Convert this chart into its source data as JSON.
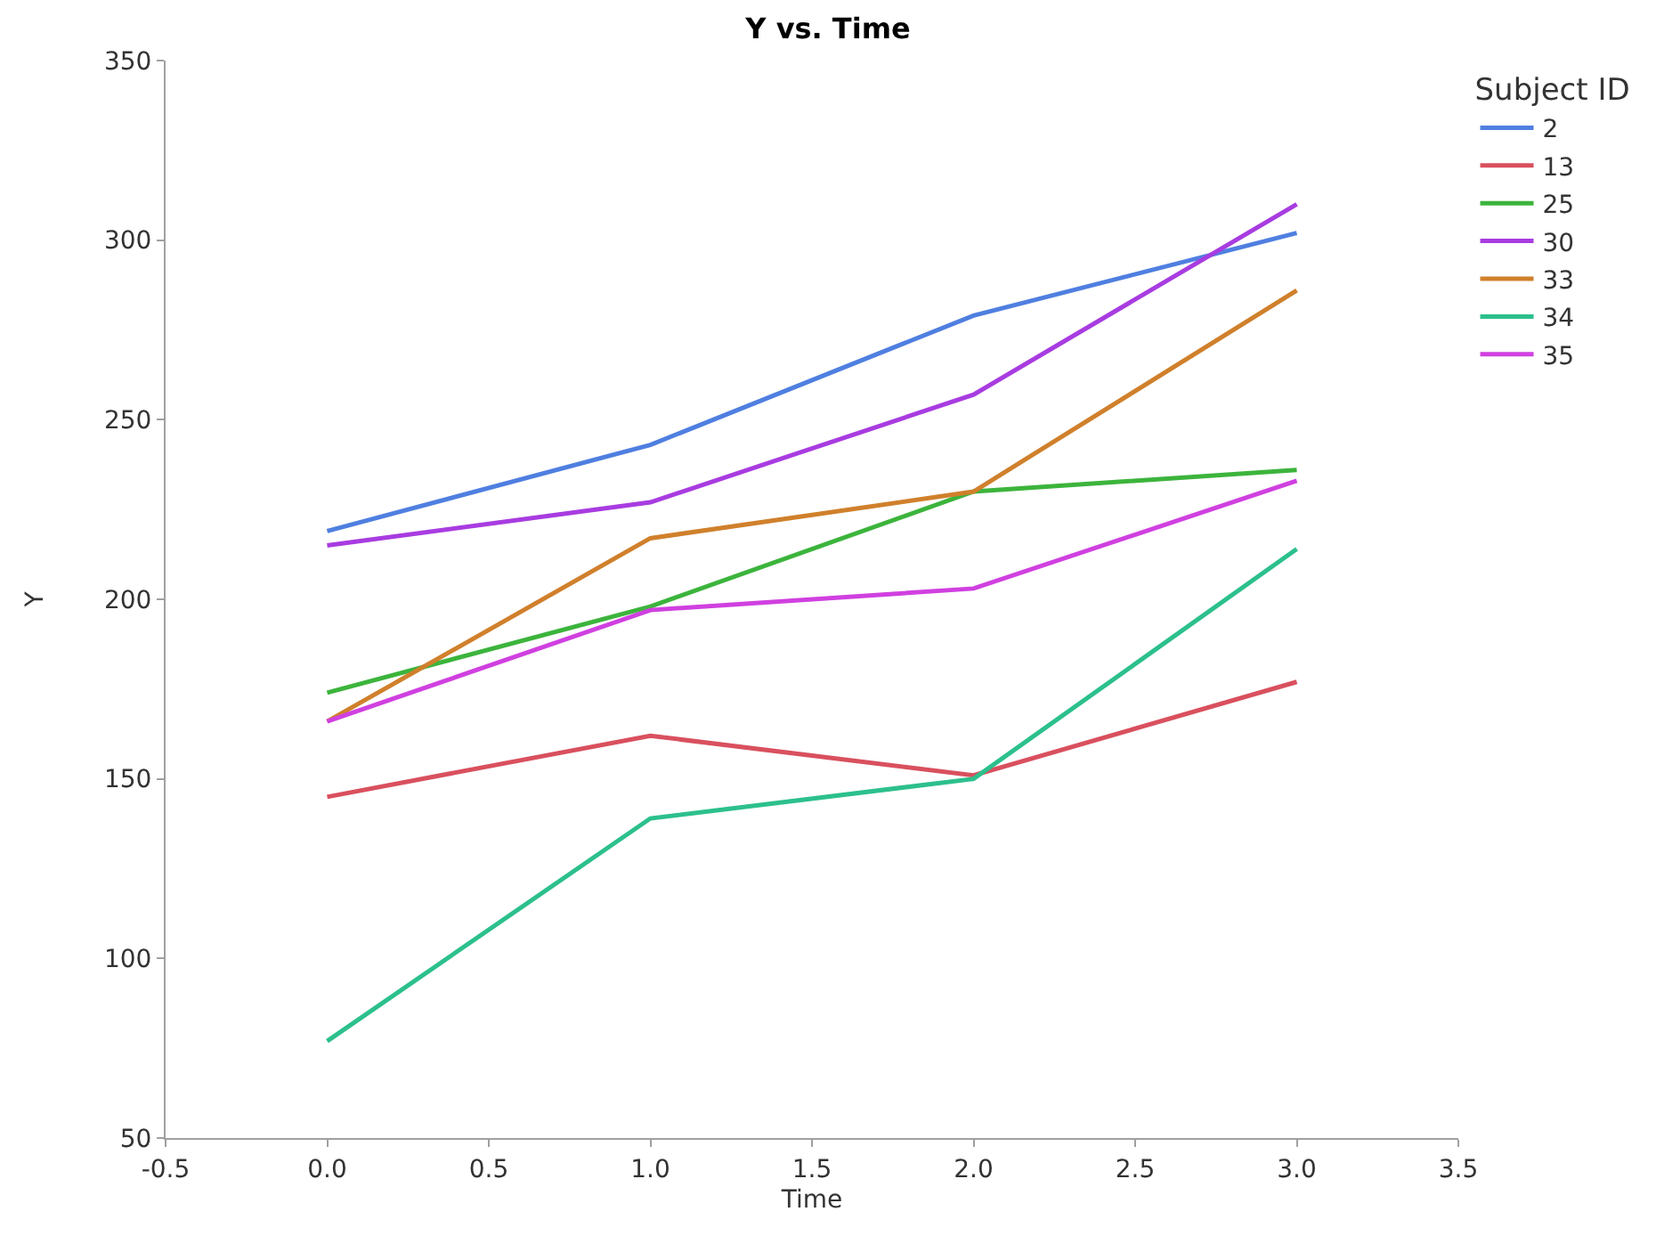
{
  "chart_data": {
    "type": "line",
    "title": "Y vs. Time",
    "xlabel": "Time",
    "ylabel": "Y",
    "legend_title": "Subject ID",
    "x": [
      0,
      1,
      2,
      3
    ],
    "series": [
      {
        "name": "2",
        "color": "#4f7fe0",
        "values": [
          219,
          243,
          279,
          302
        ]
      },
      {
        "name": "13",
        "color": "#d9505e",
        "values": [
          145,
          162,
          151,
          177
        ]
      },
      {
        "name": "25",
        "color": "#3cb43c",
        "values": [
          174,
          198,
          230,
          236
        ]
      },
      {
        "name": "30",
        "color": "#a83ce0",
        "values": [
          215,
          227,
          257,
          310
        ]
      },
      {
        "name": "33",
        "color": "#d0802c",
        "values": [
          166,
          217,
          230,
          286
        ]
      },
      {
        "name": "34",
        "color": "#2cc08c",
        "values": [
          77,
          139,
          150,
          214
        ]
      },
      {
        "name": "35",
        "color": "#d040e0",
        "values": [
          166,
          197,
          203,
          233
        ]
      }
    ],
    "xlim": [
      -0.5,
      3.5
    ],
    "xticks": [
      {
        "value": -0.5,
        "label": "-0.5"
      },
      {
        "value": 0,
        "label": "0.0"
      },
      {
        "value": 0.5,
        "label": "0.5"
      },
      {
        "value": 1,
        "label": "1.0"
      },
      {
        "value": 1.5,
        "label": "1.5"
      },
      {
        "value": 2,
        "label": "2.0"
      },
      {
        "value": 2.5,
        "label": "2.5"
      },
      {
        "value": 3,
        "label": "3.0"
      },
      {
        "value": 3.5,
        "label": "3.5"
      }
    ],
    "ylim": [
      50,
      350
    ],
    "yticks": [
      50,
      100,
      150,
      200,
      250,
      300,
      350
    ],
    "grid": false,
    "legend": "right",
    "marker": "none",
    "line_style": "solid"
  }
}
